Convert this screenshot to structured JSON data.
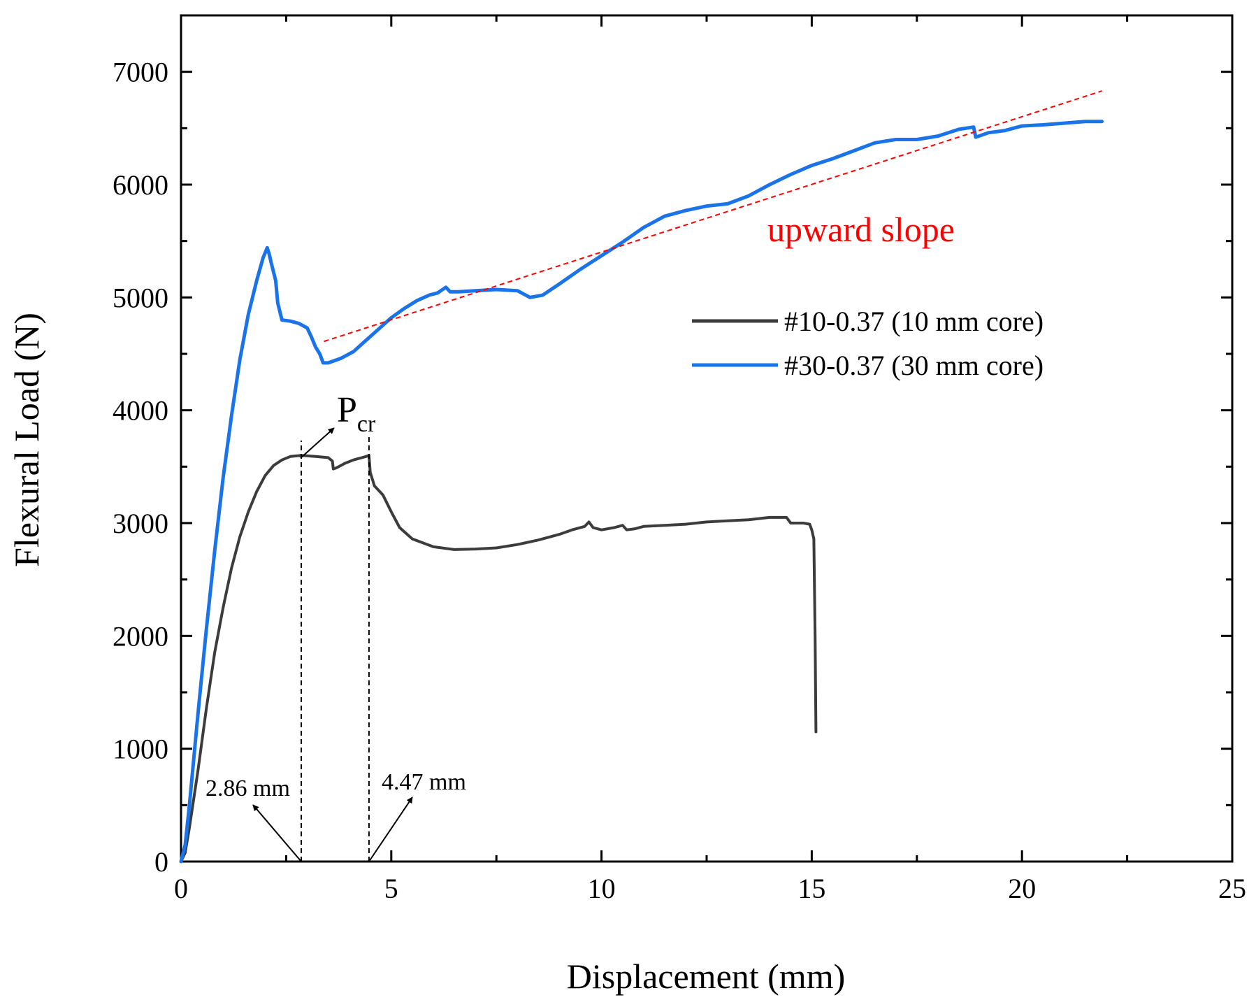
{
  "chart_data": {
    "type": "line",
    "title": "",
    "xlabel": "Displacement (mm)",
    "ylabel": "Flexural Load (N)",
    "xlim": [
      0,
      25
    ],
    "ylim": [
      0,
      7500
    ],
    "xticks": [
      0,
      5,
      10,
      15,
      20,
      25
    ],
    "yticks": [
      0,
      1000,
      2000,
      3000,
      4000,
      5000,
      6000,
      7000
    ],
    "xtick_labels": [
      "0",
      "5",
      "10",
      "15",
      "20",
      "25"
    ],
    "ytick_labels": [
      "0",
      "1000",
      "2000",
      "3000",
      "4000",
      "5000",
      "6000",
      "7000"
    ],
    "legend_position": "center-right",
    "series": [
      {
        "name": "#10-0.37 (10 mm core)",
        "color": "#3c3c3c",
        "points": [
          [
            0,
            0
          ],
          [
            0.1,
            80
          ],
          [
            0.2,
            300
          ],
          [
            0.4,
            800
          ],
          [
            0.6,
            1350
          ],
          [
            0.8,
            1850
          ],
          [
            1.0,
            2250
          ],
          [
            1.2,
            2600
          ],
          [
            1.4,
            2880
          ],
          [
            1.6,
            3100
          ],
          [
            1.8,
            3280
          ],
          [
            2.0,
            3420
          ],
          [
            2.2,
            3510
          ],
          [
            2.4,
            3560
          ],
          [
            2.6,
            3590
          ],
          [
            2.86,
            3600
          ],
          [
            3.2,
            3590
          ],
          [
            3.5,
            3580
          ],
          [
            3.6,
            3550
          ],
          [
            3.62,
            3480
          ],
          [
            3.7,
            3490
          ],
          [
            3.9,
            3530
          ],
          [
            4.1,
            3560
          ],
          [
            4.3,
            3580
          ],
          [
            4.4,
            3590
          ],
          [
            4.47,
            3600
          ],
          [
            4.5,
            3450
          ],
          [
            4.6,
            3330
          ],
          [
            4.8,
            3250
          ],
          [
            5.0,
            3100
          ],
          [
            5.2,
            2960
          ],
          [
            5.5,
            2860
          ],
          [
            6.0,
            2790
          ],
          [
            6.5,
            2765
          ],
          [
            7.0,
            2770
          ],
          [
            7.5,
            2780
          ],
          [
            8.0,
            2810
          ],
          [
            8.5,
            2850
          ],
          [
            9.0,
            2900
          ],
          [
            9.3,
            2940
          ],
          [
            9.6,
            2970
          ],
          [
            9.7,
            3010
          ],
          [
            9.8,
            2960
          ],
          [
            10.0,
            2940
          ],
          [
            10.3,
            2960
          ],
          [
            10.5,
            2980
          ],
          [
            10.6,
            2940
          ],
          [
            10.8,
            2950
          ],
          [
            11.0,
            2970
          ],
          [
            11.5,
            2980
          ],
          [
            12.0,
            2990
          ],
          [
            12.5,
            3010
          ],
          [
            13.0,
            3020
          ],
          [
            13.5,
            3030
          ],
          [
            14.0,
            3050
          ],
          [
            14.4,
            3050
          ],
          [
            14.5,
            3000
          ],
          [
            14.8,
            3000
          ],
          [
            14.95,
            2990
          ],
          [
            15.0,
            2940
          ],
          [
            15.05,
            2860
          ],
          [
            15.08,
            2000
          ],
          [
            15.1,
            1150
          ]
        ]
      },
      {
        "name": "#30-0.37 (30 mm core)",
        "color": "#1a73e8",
        "points": [
          [
            0,
            0
          ],
          [
            0.1,
            150
          ],
          [
            0.2,
            500
          ],
          [
            0.4,
            1300
          ],
          [
            0.6,
            2050
          ],
          [
            0.8,
            2750
          ],
          [
            1.0,
            3400
          ],
          [
            1.2,
            3950
          ],
          [
            1.4,
            4450
          ],
          [
            1.6,
            4850
          ],
          [
            1.8,
            5150
          ],
          [
            1.95,
            5350
          ],
          [
            2.05,
            5440
          ],
          [
            2.1,
            5380
          ],
          [
            2.15,
            5300
          ],
          [
            2.25,
            5150
          ],
          [
            2.3,
            4950
          ],
          [
            2.4,
            4800
          ],
          [
            2.6,
            4790
          ],
          [
            2.8,
            4770
          ],
          [
            3.0,
            4730
          ],
          [
            3.1,
            4650
          ],
          [
            3.2,
            4560
          ],
          [
            3.3,
            4500
          ],
          [
            3.38,
            4420
          ],
          [
            3.5,
            4420
          ],
          [
            3.8,
            4460
          ],
          [
            4.1,
            4520
          ],
          [
            4.4,
            4620
          ],
          [
            4.7,
            4720
          ],
          [
            5.0,
            4820
          ],
          [
            5.3,
            4900
          ],
          [
            5.6,
            4970
          ],
          [
            5.9,
            5020
          ],
          [
            6.1,
            5040
          ],
          [
            6.3,
            5090
          ],
          [
            6.4,
            5050
          ],
          [
            6.6,
            5050
          ],
          [
            7.0,
            5060
          ],
          [
            7.5,
            5070
          ],
          [
            8.0,
            5060
          ],
          [
            8.3,
            5000
          ],
          [
            8.6,
            5020
          ],
          [
            9.0,
            5120
          ],
          [
            9.5,
            5250
          ],
          [
            10.0,
            5370
          ],
          [
            10.5,
            5490
          ],
          [
            11.0,
            5620
          ],
          [
            11.5,
            5720
          ],
          [
            12.0,
            5770
          ],
          [
            12.5,
            5810
          ],
          [
            13.0,
            5830
          ],
          [
            13.5,
            5900
          ],
          [
            14.0,
            6000
          ],
          [
            14.5,
            6090
          ],
          [
            15.0,
            6170
          ],
          [
            15.5,
            6230
          ],
          [
            16.0,
            6300
          ],
          [
            16.5,
            6370
          ],
          [
            17.0,
            6400
          ],
          [
            17.5,
            6400
          ],
          [
            18.0,
            6430
          ],
          [
            18.5,
            6490
          ],
          [
            18.85,
            6510
          ],
          [
            18.9,
            6420
          ],
          [
            19.2,
            6460
          ],
          [
            19.6,
            6480
          ],
          [
            20.0,
            6520
          ],
          [
            20.5,
            6530
          ],
          [
            21.0,
            6545
          ],
          [
            21.5,
            6560
          ],
          [
            21.9,
            6560
          ]
        ]
      }
    ],
    "trend_line": {
      "label": "upward slope",
      "color": "#ff0000",
      "points": [
        [
          3.4,
          4610
        ],
        [
          21.9,
          6830
        ]
      ]
    },
    "annotations": {
      "pcr_label": "P",
      "pcr_subscript": "cr",
      "left_marker": {
        "x": 2.86,
        "label": "2.86 mm"
      },
      "right_marker": {
        "x": 4.47,
        "label": "4.47 mm"
      }
    }
  }
}
